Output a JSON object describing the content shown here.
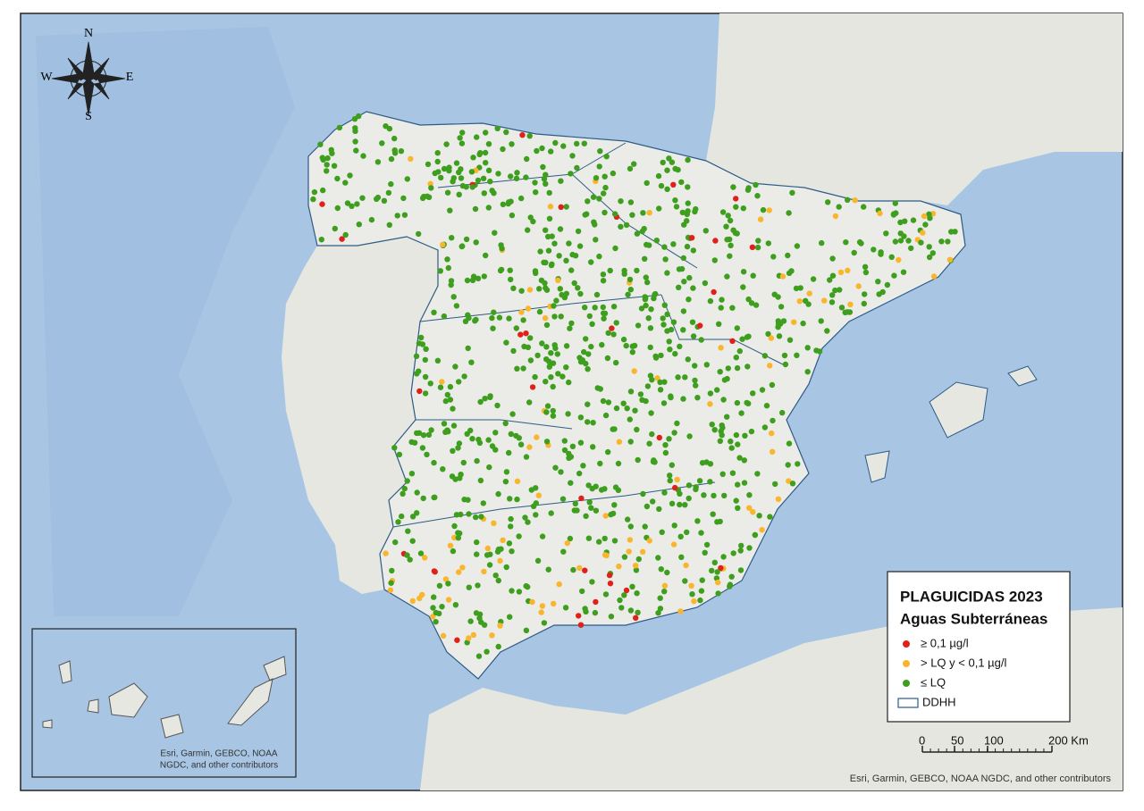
{
  "compass": {
    "n": "N",
    "w": "W",
    "e": "E",
    "s": "S"
  },
  "legend": {
    "title": "PLAGUICIDAS 2023",
    "subtitle": "Aguas Subterráneas",
    "items": [
      {
        "label": "≥ 0,1 µg/l",
        "color": "#e0201b"
      },
      {
        "label": "> LQ y < 0,1 µg/l",
        "color": "#f9b52c"
      },
      {
        "label": "≤ LQ",
        "color": "#3e9e1e"
      },
      {
        "label": "DDHH",
        "color": "#2d5b86"
      }
    ]
  },
  "scale_bar": {
    "labels": [
      "0",
      "50",
      "100",
      "200 Km"
    ]
  },
  "inset_attribution": [
    "Esri, Garmin, GEBCO, NOAA",
    "NGDC, and other contributors"
  ],
  "attribution": "Esri, Garmin, GEBCO, NOAA NGDC, and other contributors"
}
